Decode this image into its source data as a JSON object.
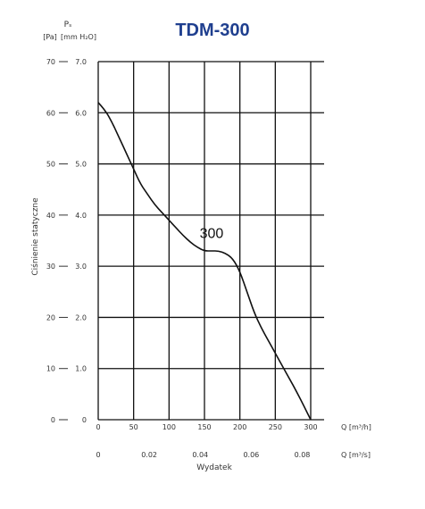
{
  "chart_data": {
    "type": "line",
    "title": "TDM-300",
    "y_label": "Ciśnienie statyczne",
    "y_symbol": "Pₛ",
    "y_units_left": "[Pa]",
    "y_units_right": "[mm H₂O]",
    "y_ticks_pa": [
      "70",
      "60",
      "50",
      "40",
      "30",
      "20",
      "10",
      "0"
    ],
    "y_ticks_mm": [
      "7.0",
      "6.0",
      "5.0",
      "4.0",
      "3.0",
      "2.0",
      "1.0",
      "0"
    ],
    "ylim": [
      0,
      7.0
    ],
    "x_ticks_m3h": [
      "0",
      "50",
      "100",
      "150",
      "200",
      "250",
      "300"
    ],
    "x_unit_m3h": "Q [m³/h]",
    "xlim": [
      0,
      300
    ],
    "x_ticks_m3s": [
      "0",
      "0.02",
      "0.04",
      "0.06",
      "0.08"
    ],
    "x_unit_m3s": "Q [m³/s]",
    "x_label": "Wydatek",
    "series": [
      {
        "name": "300",
        "x": [
          0,
          10,
          20,
          30,
          40,
          50,
          60,
          70,
          80,
          90,
          100,
          110,
          120,
          130,
          140,
          150,
          160,
          170,
          180,
          190,
          200,
          210,
          220,
          230,
          240,
          250,
          260,
          270,
          280,
          290,
          300
        ],
        "y": [
          6.2,
          6.05,
          5.8,
          5.5,
          5.2,
          4.9,
          4.6,
          4.4,
          4.2,
          4.05,
          3.9,
          3.75,
          3.6,
          3.47,
          3.37,
          3.3,
          3.3,
          3.3,
          3.25,
          3.15,
          2.9,
          2.5,
          2.1,
          1.8,
          1.55,
          1.3,
          1.05,
          0.8,
          0.55,
          0.28,
          0.0
        ]
      }
    ],
    "grid": true
  }
}
